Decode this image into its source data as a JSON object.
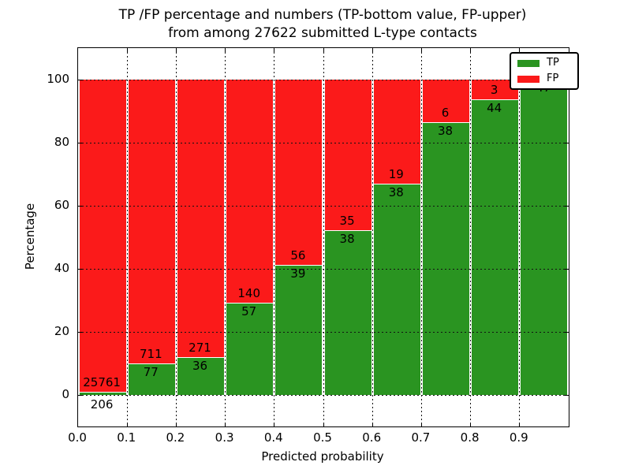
{
  "title": {
    "line1": "TP /FP percentage and numbers (TP-bottom value, FP-upper)",
    "line2": "from among 27622 submitted L-type contacts"
  },
  "chart_data": {
    "type": "bar",
    "stacked": true,
    "normalized_to_percent": true,
    "title": "TP /FP percentage and numbers (TP-bottom value, FP-upper)\nfrom among 27622 submitted L-type contacts",
    "xlabel": "Predicted probability",
    "ylabel": "Percentage",
    "total_contacts": 27622,
    "bin_width": 0.1,
    "bin_starts": [
      0.0,
      0.1,
      0.2,
      0.3,
      0.4,
      0.5,
      0.6,
      0.7,
      0.8,
      0.9
    ],
    "x_tick_labels": [
      "0.0",
      "0.1",
      "0.2",
      "0.3",
      "0.4",
      "0.5",
      "0.6",
      "0.7",
      "0.8",
      "0.9"
    ],
    "y_ticks": [
      0,
      20,
      40,
      60,
      80,
      100
    ],
    "xlim": [
      0,
      1
    ],
    "ylim": [
      -10,
      110
    ],
    "grid": "dotted black, both axes",
    "legend_position": "upper right",
    "series": [
      {
        "name": "TP",
        "color": "#2a9421",
        "position": "bottom",
        "counts": [
          206,
          77,
          36,
          57,
          39,
          38,
          38,
          38,
          44,
          47
        ]
      },
      {
        "name": "FP",
        "color": "#fb1a1a",
        "position": "top",
        "counts": [
          25761,
          711,
          271,
          140,
          56,
          35,
          19,
          6,
          3,
          0
        ]
      }
    ]
  }
}
